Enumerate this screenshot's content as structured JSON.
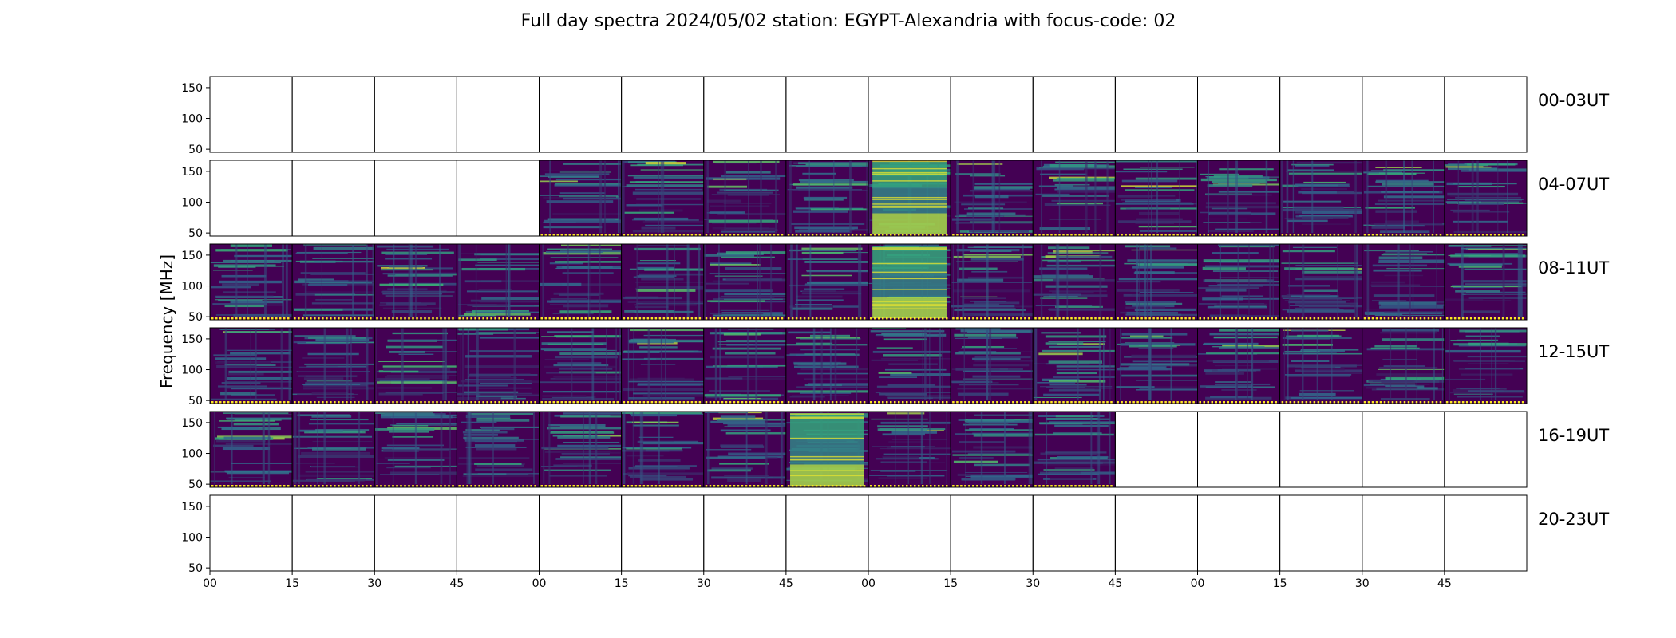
{
  "chart_data": {
    "type": "heatmap",
    "title": "Full day spectra 2024/05/02 station: EGYPT-Alexandria with focus-code: 02",
    "ylabel": "Frequency [MHz]",
    "xlabel": "",
    "ylim": [
      45,
      168
    ],
    "y_ticks": [
      "50",
      "100",
      "150"
    ],
    "y_tick_values": [
      50,
      100,
      150
    ],
    "x_tick_labels": [
      "00",
      "15",
      "30",
      "45",
      "00",
      "15",
      "30",
      "45",
      "00",
      "15",
      "30",
      "45",
      "00",
      "15",
      "30",
      "45"
    ],
    "panels_per_row": 16,
    "colormap": "viridis",
    "rows": [
      {
        "label": "00-03UT",
        "has_data": [
          0,
          0,
          0,
          0,
          0,
          0,
          0,
          0,
          0,
          0,
          0,
          0,
          0,
          0,
          0,
          0
        ]
      },
      {
        "label": "04-07UT",
        "has_data": [
          0,
          0,
          0,
          0,
          1,
          1,
          1,
          1,
          1,
          1,
          1,
          1,
          1,
          1,
          1,
          1
        ],
        "bright_panels": [
          8
        ]
      },
      {
        "label": "08-11UT",
        "has_data": [
          1,
          1,
          1,
          1,
          1,
          1,
          1,
          1,
          1,
          1,
          1,
          1,
          1,
          1,
          1,
          1
        ],
        "bright_panels": [
          8
        ]
      },
      {
        "label": "12-15UT",
        "has_data": [
          1,
          1,
          1,
          1,
          1,
          1,
          1,
          1,
          1,
          1,
          1,
          1,
          1,
          1,
          1,
          1
        ]
      },
      {
        "label": "16-19UT",
        "has_data": [
          1,
          1,
          1,
          1,
          1,
          1,
          1,
          1,
          1,
          1,
          1,
          0,
          0,
          0,
          0,
          0
        ],
        "bright_panels": [
          7
        ]
      },
      {
        "label": "20-23UT",
        "has_data": [
          0,
          0,
          0,
          0,
          0,
          0,
          0,
          0,
          0,
          0,
          0,
          0,
          0,
          0,
          0,
          0
        ]
      }
    ]
  },
  "colors": {
    "background": "#440154",
    "low": "#46085c",
    "mid": "#31688e",
    "high": "#35b779",
    "peak": "#fde725"
  }
}
